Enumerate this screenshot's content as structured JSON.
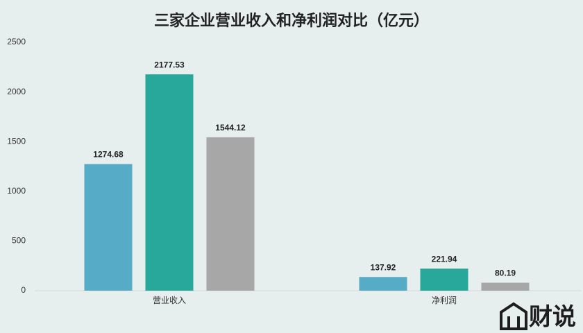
{
  "chart_data": {
    "type": "bar",
    "title": "三家企业营业收入和净利润对比（亿元）",
    "categories": [
      "营业收入",
      "净利润"
    ],
    "series": [
      {
        "color": "#56abc7",
        "values": [
          1274.68,
          137.92
        ]
      },
      {
        "color": "#28a89a",
        "values": [
          2177.53,
          221.94
        ]
      },
      {
        "color": "#a7a7a7",
        "values": [
          1544.12,
          80.19
        ]
      }
    ],
    "ylim": [
      0,
      2500
    ],
    "yticks": [
      0,
      500,
      1000,
      1500,
      2000,
      2500
    ],
    "grid": false,
    "logo": "财说"
  }
}
